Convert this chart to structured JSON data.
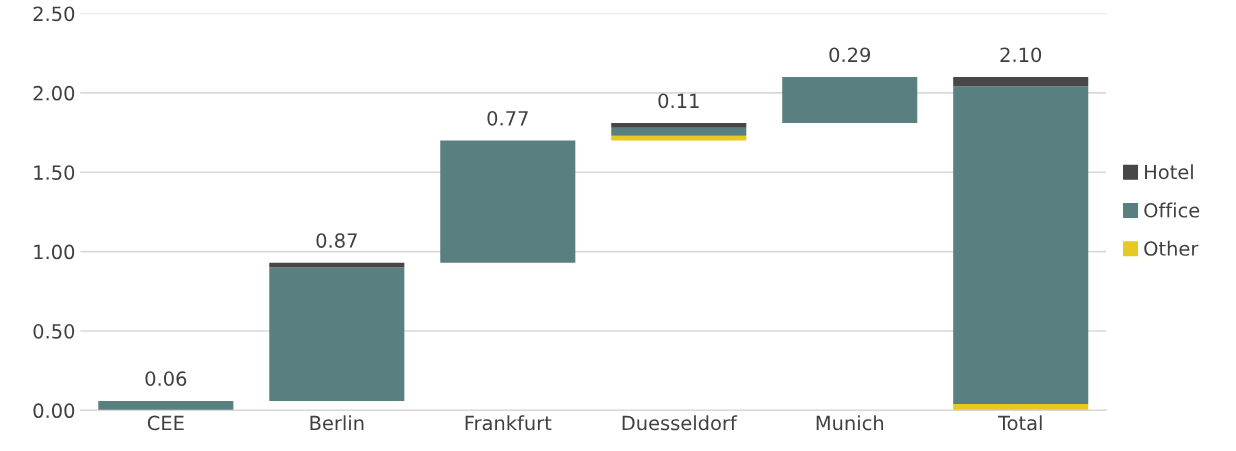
{
  "chart_data": {
    "type": "bar",
    "categories": [
      "CEE",
      "Berlin",
      "Frankfurt",
      "Duesseldorf",
      "Munich",
      "Total"
    ],
    "series": [
      {
        "name": "Other",
        "color": "#e8c922",
        "values": [
          null,
          null,
          null,
          0.03,
          null,
          0.04
        ],
        "base": [
          null,
          null,
          null,
          1.7,
          null,
          0
        ]
      },
      {
        "name": "Office",
        "color": "#5a7f80",
        "values": [
          0.06,
          0.84,
          0.77,
          0.05,
          0.29,
          2.0
        ],
        "base": [
          0,
          0.06,
          0.93,
          1.73,
          1.81,
          0.04
        ]
      },
      {
        "name": "Hotel",
        "color": "#474747",
        "values": [
          null,
          0.03,
          null,
          0.03,
          null,
          0.06
        ],
        "base": [
          null,
          0.9,
          null,
          1.78,
          null,
          2.04
        ]
      }
    ],
    "totals": [
      "0.06",
      "0.87",
      "0.77",
      "0.11",
      "0.29",
      "2.10"
    ],
    "ylim": [
      0,
      2.5
    ],
    "yticks": [
      {
        "value": 0,
        "label": "0.00"
      },
      {
        "value": 0.5,
        "label": "0.50"
      },
      {
        "value": 1,
        "label": "1.00"
      },
      {
        "value": 1.5,
        "label": "1.50"
      },
      {
        "value": 2,
        "label": "2.00"
      },
      {
        "value": 2.5,
        "label": "2.50"
      }
    ],
    "grid": "y",
    "legend": "right"
  }
}
